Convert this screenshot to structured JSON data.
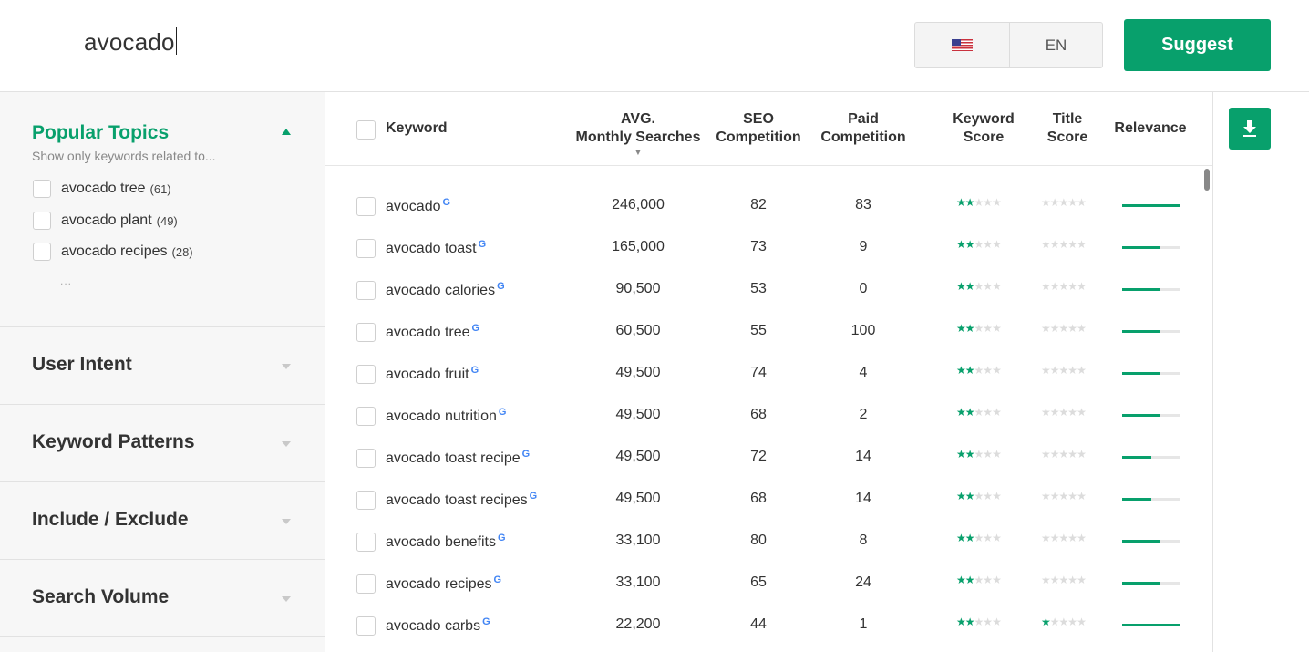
{
  "search": {
    "query": "avocado"
  },
  "locale": {
    "flag_icon": "us-flag-icon",
    "language": "EN"
  },
  "suggest_button": {
    "label": "Suggest"
  },
  "sidebar": {
    "popular_topics": {
      "title": "Popular Topics",
      "subtitle": "Show only keywords related to...",
      "items": [
        {
          "label": "avocado tree",
          "count": "(61)"
        },
        {
          "label": "avocado plant",
          "count": "(49)"
        },
        {
          "label": "avocado recipes",
          "count": "(28)"
        }
      ],
      "more": "..."
    },
    "sections": [
      {
        "title": "User Intent"
      },
      {
        "title": "Keyword Patterns"
      },
      {
        "title": "Include / Exclude"
      },
      {
        "title": "Search Volume"
      }
    ]
  },
  "table": {
    "headers": {
      "keyword": "Keyword",
      "searches_line1": "AVG.",
      "searches_line2": "Monthly Searches",
      "seo_line1": "SEO",
      "seo_line2": "Competition",
      "paid_line1": "Paid",
      "paid_line2": "Competition",
      "kscore_line1": "Keyword",
      "kscore_line2": "Score",
      "tscore_line1": "Title",
      "tscore_line2": "Score",
      "relevance": "Relevance"
    },
    "sort_indicator": "▼",
    "google_icon_label": "G",
    "rows": [
      {
        "keyword": "avocado",
        "searches": "246,000",
        "seo": "82",
        "paid": "83",
        "keyword_score": 2,
        "title_score": 0,
        "relevance": 1.0
      },
      {
        "keyword": "avocado toast",
        "searches": "165,000",
        "seo": "73",
        "paid": "9",
        "keyword_score": 2,
        "title_score": 0,
        "relevance": 0.67
      },
      {
        "keyword": "avocado calories",
        "searches": "90,500",
        "seo": "53",
        "paid": "0",
        "keyword_score": 2,
        "title_score": 0,
        "relevance": 0.67
      },
      {
        "keyword": "avocado tree",
        "searches": "60,500",
        "seo": "55",
        "paid": "100",
        "keyword_score": 2,
        "title_score": 0,
        "relevance": 0.67
      },
      {
        "keyword": "avocado fruit",
        "searches": "49,500",
        "seo": "74",
        "paid": "4",
        "keyword_score": 2,
        "title_score": 0,
        "relevance": 0.67
      },
      {
        "keyword": "avocado nutrition",
        "searches": "49,500",
        "seo": "68",
        "paid": "2",
        "keyword_score": 2,
        "title_score": 0,
        "relevance": 0.67
      },
      {
        "keyword": "avocado toast recipe",
        "searches": "49,500",
        "seo": "72",
        "paid": "14",
        "keyword_score": 2,
        "title_score": 0,
        "relevance": 0.5
      },
      {
        "keyword": "avocado toast recipes",
        "searches": "49,500",
        "seo": "68",
        "paid": "14",
        "keyword_score": 2,
        "title_score": 0,
        "relevance": 0.5
      },
      {
        "keyword": "avocado benefits",
        "searches": "33,100",
        "seo": "80",
        "paid": "8",
        "keyword_score": 2,
        "title_score": 0,
        "relevance": 0.67
      },
      {
        "keyword": "avocado recipes",
        "searches": "33,100",
        "seo": "65",
        "paid": "24",
        "keyword_score": 2,
        "title_score": 0,
        "relevance": 0.67
      },
      {
        "keyword": "avocado carbs",
        "searches": "22,200",
        "seo": "44",
        "paid": "1",
        "keyword_score": 2,
        "title_score": 1,
        "relevance": 1.0
      }
    ]
  },
  "download_button": {
    "icon": "download-icon"
  },
  "colors": {
    "accent": "#08a06c",
    "star_off": "#dcdcdc"
  }
}
